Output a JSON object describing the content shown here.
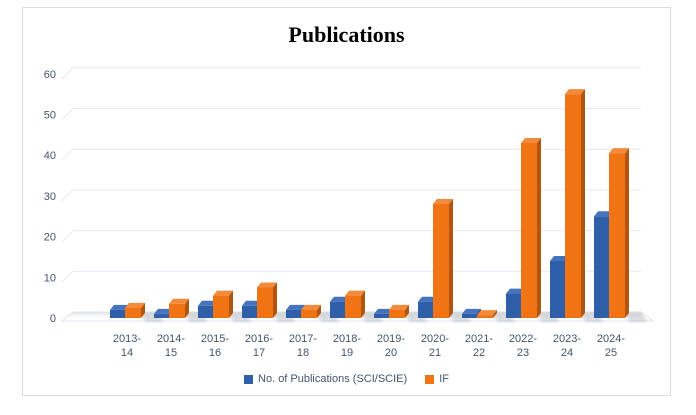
{
  "title": "Publications",
  "chart_data": {
    "type": "bar",
    "subtype": "3d-clustered-column",
    "title": "Publications",
    "categories": [
      "2013-14",
      "2014-15",
      "2015-16",
      "2016-17",
      "2017-18",
      "2018-19",
      "2019-20",
      "2020-21",
      "2021-22",
      "2022-23",
      "2023-24",
      "2024-25"
    ],
    "series": [
      {
        "name": "No. of Publications (SCI/SCIE)",
        "color": "#2f5fa8",
        "color_top": "#4673be",
        "color_dark": "#1e3f6f",
        "values": [
          2,
          1,
          3,
          3,
          2,
          4,
          1,
          4,
          1,
          6,
          14,
          25
        ]
      },
      {
        "name": "IF",
        "color": "#f07314",
        "color_top": "#f28b3c",
        "color_dark": "#b45411",
        "values": [
          2.5,
          3.5,
          5.5,
          7.5,
          2,
          5.5,
          2,
          28,
          0.7,
          43,
          55,
          40.5
        ]
      }
    ],
    "xlabel": "",
    "ylabel": "",
    "ylim": [
      0,
      60
    ],
    "yticks": [
      0,
      10,
      20,
      30,
      40,
      50,
      60
    ],
    "grid": true,
    "legend_position": "bottom",
    "axis_label_color": "#44546a",
    "gridline_color": "#e4e9f1",
    "chart_border_color": "#d8dce4",
    "background_color": "#ffffff"
  }
}
